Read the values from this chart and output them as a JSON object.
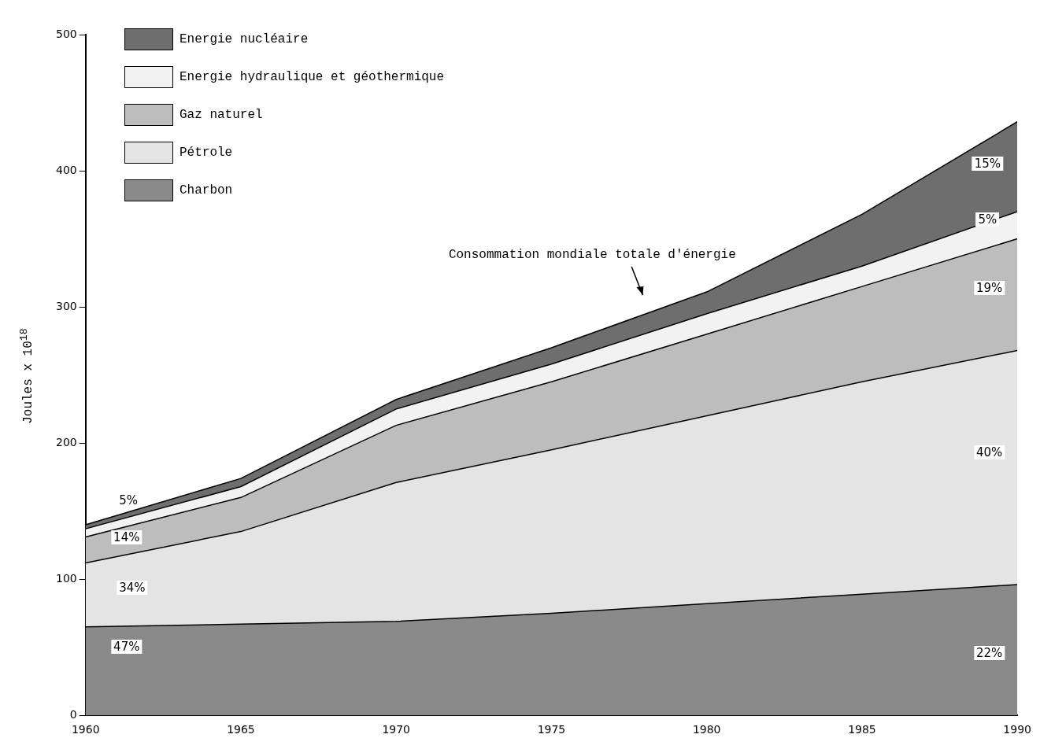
{
  "chart_data": {
    "type": "area",
    "ylabel": "Joules x 10$^{18}$",
    "x": [
      1960,
      1965,
      1970,
      1975,
      1980,
      1985,
      1990
    ],
    "xlim": [
      1960,
      1990
    ],
    "xticks": [
      1960,
      1965,
      1970,
      1975,
      1980,
      1985,
      1990
    ],
    "ylim": [
      0,
      500
    ],
    "yticks": [
      0,
      100,
      200,
      300,
      400,
      500
    ],
    "stacked": true,
    "grid": false,
    "legend": "top left",
    "series": [
      {
        "name": "Charbon",
        "color": "#8a8a8a",
        "values": [
          65,
          67,
          69,
          75,
          82,
          89,
          96
        ]
      },
      {
        "name": "Pétrole",
        "color": "#e4e4e4",
        "values": [
          47,
          68,
          102,
          120,
          138,
          156,
          172
        ]
      },
      {
        "name": "Gaz naturel",
        "color": "#bdbdbd",
        "values": [
          19,
          25,
          42,
          50,
          60,
          70,
          82
        ]
      },
      {
        "name": "Energie hydraulique et géothermique",
        "color": "#f2f2f2",
        "values": [
          6,
          8,
          12,
          13,
          15,
          15,
          20
        ]
      },
      {
        "name": "Energie nucléaire",
        "color": "#6e6e6e",
        "values": [
          3,
          6,
          7,
          12,
          16,
          38,
          66
        ]
      }
    ],
    "annotations": [
      "Consommation mondiale totale d'énergie",
      "5%",
      "14%",
      "34%",
      "47%",
      "15%",
      "5%",
      "19%",
      "40%",
      "22%"
    ]
  }
}
